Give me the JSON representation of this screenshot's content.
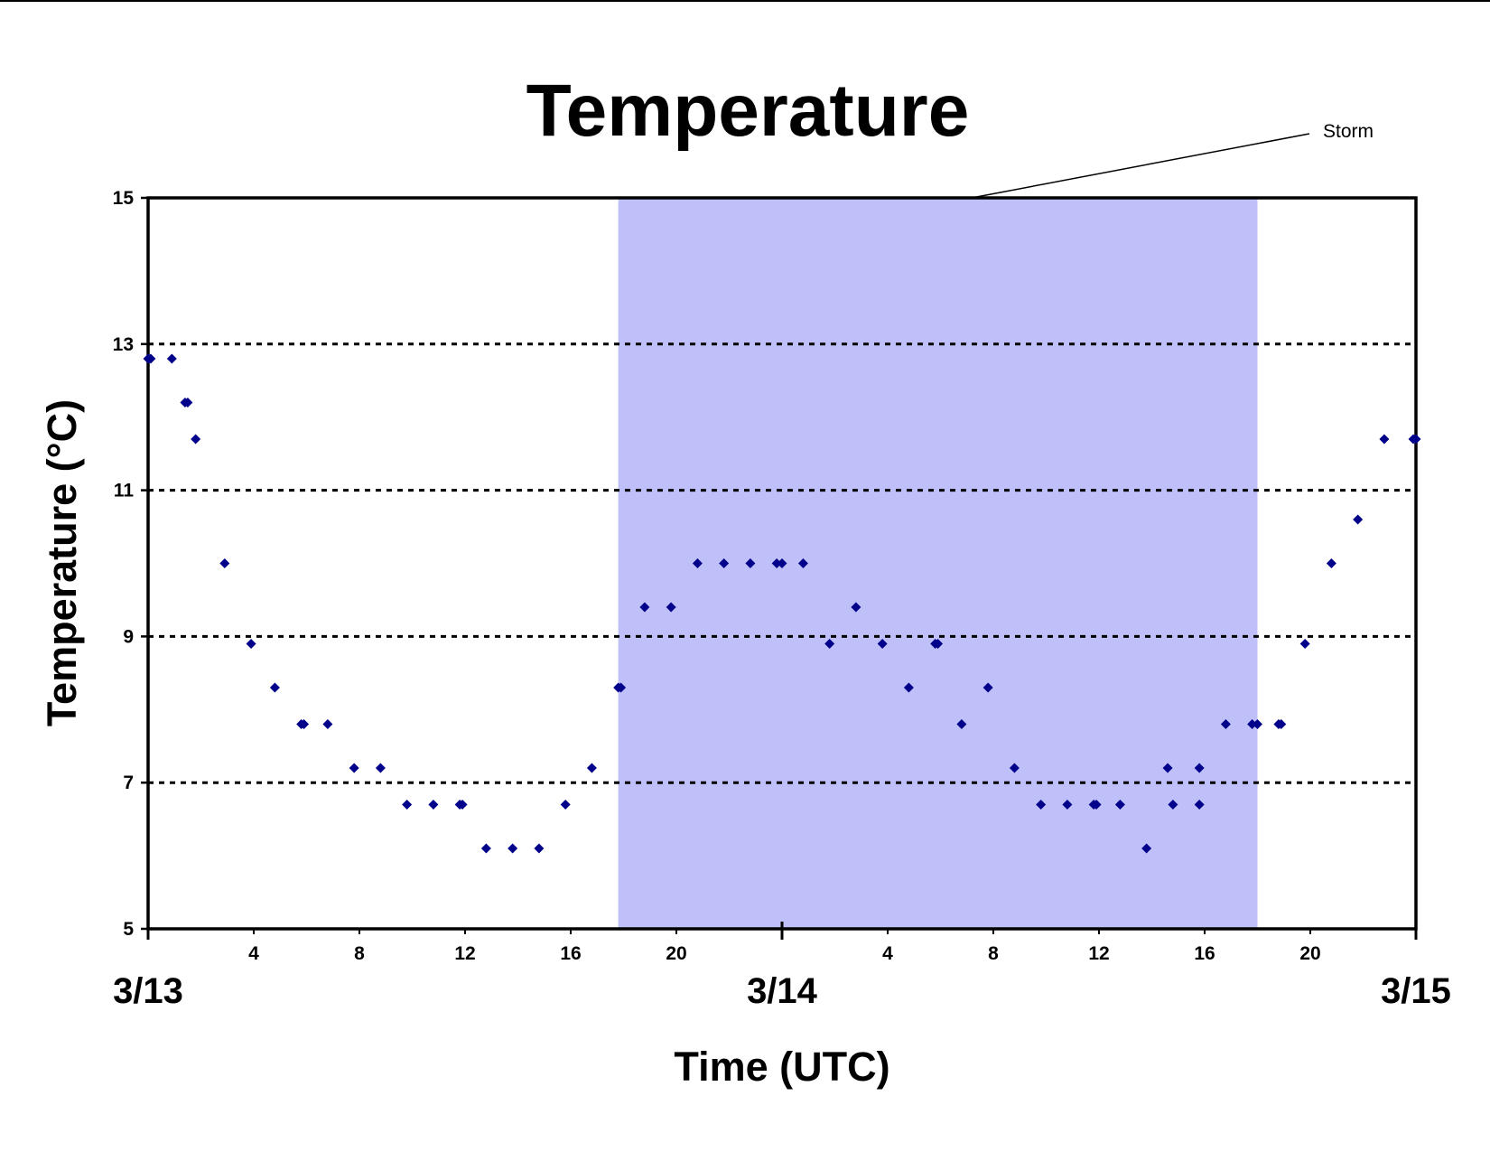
{
  "chart_data": {
    "type": "scatter",
    "title": "Temperature",
    "xlabel": "Time (UTC)",
    "ylabel": "Temperature (°C)",
    "ylim": [
      5,
      15
    ],
    "yticks": [
      5,
      7,
      9,
      11,
      13,
      15
    ],
    "gridlines_y": [
      7,
      9,
      11,
      13
    ],
    "xlim_hours": [
      0,
      48
    ],
    "hour_tick_labels": [
      "4",
      "8",
      "12",
      "16",
      "20",
      "4",
      "8",
      "12",
      "16",
      "20"
    ],
    "hour_tick_positions": [
      4,
      8,
      12,
      16,
      20,
      28,
      32,
      36,
      40,
      44
    ],
    "date_labels": [
      "3/13",
      "3/14",
      "3/15"
    ],
    "date_positions": [
      0,
      24,
      48
    ],
    "shaded_region": {
      "x_hours": [
        17.8,
        42.0
      ],
      "color": "#BFBFFA"
    },
    "annotation": {
      "text": "Storm"
    },
    "marker_color": "#00008B",
    "series": [
      {
        "x": [
          0,
          0.1,
          0.9,
          1.4,
          1.5,
          1.8,
          2.9,
          3.9,
          4.8,
          5.8,
          5.9,
          6.8,
          7.8,
          8.8,
          9.8,
          10.8,
          11.8,
          11.9,
          12.8,
          13.8,
          14.8,
          15.8,
          16.8,
          17.8,
          17.9,
          18.8,
          19.8,
          20.8,
          21.8,
          22.8,
          23.8,
          24.0,
          24.8,
          25.8,
          26.8,
          27.8,
          28.8,
          29.8,
          29.9,
          30.8,
          31.8,
          32.8,
          33.8,
          34.8,
          35.8,
          35.9,
          36.8,
          37.8,
          38.6,
          38.8,
          39.8,
          39.8,
          40.8,
          41.8,
          42.0,
          42.8,
          42.9,
          43.8,
          44.8,
          45.8,
          46.8,
          47.9,
          48.0
        ],
        "y": [
          12.8,
          12.8,
          12.8,
          12.2,
          12.2,
          11.7,
          10.0,
          8.9,
          8.3,
          7.8,
          7.8,
          7.8,
          7.2,
          7.2,
          6.7,
          6.7,
          6.7,
          6.7,
          6.1,
          6.1,
          6.1,
          6.7,
          7.2,
          8.3,
          8.3,
          9.4,
          9.4,
          10.0,
          10.0,
          10.0,
          10.0,
          10.0,
          10.0,
          8.9,
          9.4,
          8.9,
          8.3,
          8.9,
          8.9,
          7.8,
          8.3,
          7.2,
          6.7,
          6.7,
          6.7,
          6.7,
          6.7,
          6.1,
          7.2,
          6.7,
          7.2,
          6.7,
          7.8,
          7.8,
          7.8,
          7.8,
          7.8,
          8.9,
          10.0,
          10.6,
          11.7,
          11.7,
          11.7
        ]
      }
    ]
  }
}
